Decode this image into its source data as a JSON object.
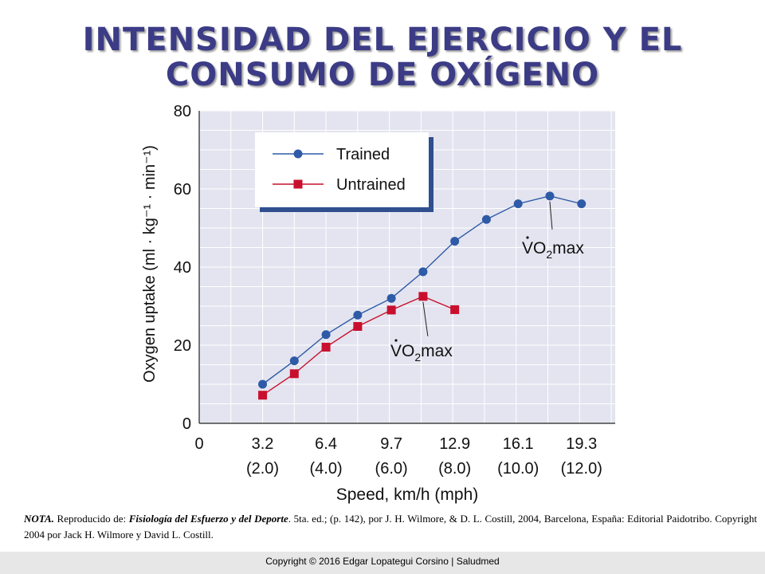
{
  "title": {
    "line1": "INTENSIDAD DEL EJERCICIO Y EL",
    "line2": "CONSUMO DE OXÍGENO"
  },
  "chart_data": {
    "type": "line",
    "xlabel": "Speed, km/h (mph)",
    "ylabel": "Oxygen uptake (ml · kg⁻¹ · min⁻¹)",
    "x_tick_values": [
      0,
      3.2,
      6.4,
      9.7,
      12.9,
      16.1,
      19.3
    ],
    "x_tick_labels": [
      "0",
      "3.2",
      "6.4",
      "9.7",
      "12.9",
      "16.1",
      "19.3"
    ],
    "x_tick_sublabels": [
      "",
      "(2.0)",
      "(4.0)",
      "(6.0)",
      "(8.0)",
      "(10.0)",
      "(12.0)"
    ],
    "xlim": [
      0,
      21.0
    ],
    "y_ticks": [
      0,
      20,
      40,
      60,
      80
    ],
    "ylim": [
      0,
      80
    ],
    "grid": true,
    "legend_position": "top-left",
    "series": [
      {
        "name": "Trained",
        "color": "#2e5aa7",
        "marker": "circle",
        "x": [
          3.2,
          4.8,
          6.4,
          8.0,
          9.7,
          11.3,
          12.9,
          14.5,
          16.1,
          17.7,
          19.3
        ],
        "y": [
          10,
          16,
          22.7,
          27.7,
          32,
          38.8,
          46.6,
          52.2,
          56.2,
          58.2,
          56.2
        ]
      },
      {
        "name": "Untrained",
        "color": "#c8102e",
        "marker": "square",
        "x": [
          3.2,
          4.8,
          6.4,
          8.0,
          9.7,
          11.3,
          12.9
        ],
        "y": [
          7.2,
          12.7,
          19.5,
          24.8,
          29,
          32.5,
          29.1
        ]
      }
    ],
    "annotations": [
      {
        "series": "Trained",
        "point_index": 9,
        "text_main": "VO",
        "text_sub": "2",
        "text_tail": "max"
      },
      {
        "series": "Untrained",
        "point_index": 5,
        "text_main": "VO",
        "text_sub": "2",
        "text_tail": "max"
      }
    ]
  },
  "note": {
    "label": "NOTA.",
    "text1": " Reproducido de: ",
    "book": "Fisiología del Esfuerzo y del Deporte",
    "text2": ". 5ta. ed.; (p. 142), por J. H. Wilmore, & D. L. Costill, 2004, Barcelona, España: Editorial Paidotribo. Copyright 2004 por Jack H. Wilmore y David L. Costill."
  },
  "footer": "Copyright © 2016 Edgar Lopategui Corsino | Saludmed"
}
